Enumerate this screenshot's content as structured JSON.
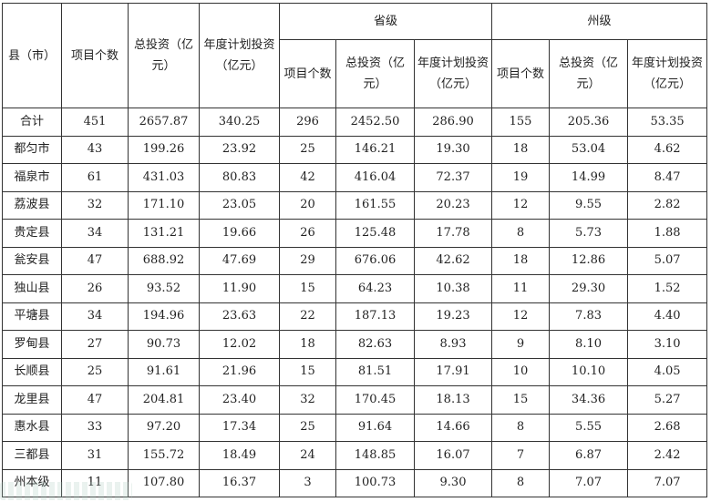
{
  "table": {
    "headers": {
      "county": "县（市）",
      "projects": "项目个数",
      "total": "总投资（亿元）",
      "annual": "年度计划投资（亿元）",
      "provincial_group": "省级",
      "prefecture_group": "州级",
      "sub_projects": "项目个数",
      "sub_total": "总投资（亿元）",
      "sub_annual": "年度计划投资（亿元）"
    },
    "rows": [
      {
        "name": "合计",
        "c1": "451",
        "c2": "2657.87",
        "c3": "340.25",
        "p1": "296",
        "p2": "2452.50",
        "p3": "286.90",
        "z1": "155",
        "z2": "205.36",
        "z3": "53.35"
      },
      {
        "name": "都匀市",
        "c1": "43",
        "c2": "199.26",
        "c3": "23.92",
        "p1": "25",
        "p2": "146.21",
        "p3": "19.30",
        "z1": "18",
        "z2": "53.04",
        "z3": "4.62"
      },
      {
        "name": "福泉市",
        "c1": "61",
        "c2": "431.03",
        "c3": "80.83",
        "p1": "42",
        "p2": "416.04",
        "p3": "72.37",
        "z1": "19",
        "z2": "14.99",
        "z3": "8.47"
      },
      {
        "name": "荔波县",
        "c1": "32",
        "c2": "171.10",
        "c3": "23.05",
        "p1": "20",
        "p2": "161.55",
        "p3": "20.23",
        "z1": "12",
        "z2": "9.55",
        "z3": "2.82"
      },
      {
        "name": "贵定县",
        "c1": "34",
        "c2": "131.21",
        "c3": "19.66",
        "p1": "26",
        "p2": "125.48",
        "p3": "17.78",
        "z1": "8",
        "z2": "5.73",
        "z3": "1.88"
      },
      {
        "name": "瓮安县",
        "c1": "47",
        "c2": "688.92",
        "c3": "47.69",
        "p1": "29",
        "p2": "676.06",
        "p3": "42.62",
        "z1": "18",
        "z2": "12.86",
        "z3": "5.07"
      },
      {
        "name": "独山县",
        "c1": "26",
        "c2": "93.52",
        "c3": "11.90",
        "p1": "15",
        "p2": "64.23",
        "p3": "10.38",
        "z1": "11",
        "z2": "29.30",
        "z3": "1.52"
      },
      {
        "name": "平塘县",
        "c1": "34",
        "c2": "194.96",
        "c3": "23.63",
        "p1": "22",
        "p2": "187.13",
        "p3": "19.23",
        "z1": "12",
        "z2": "7.83",
        "z3": "4.40"
      },
      {
        "name": "罗甸县",
        "c1": "27",
        "c2": "90.73",
        "c3": "12.02",
        "p1": "18",
        "p2": "82.63",
        "p3": "8.93",
        "z1": "9",
        "z2": "8.10",
        "z3": "3.10"
      },
      {
        "name": "长顺县",
        "c1": "25",
        "c2": "91.61",
        "c3": "21.96",
        "p1": "15",
        "p2": "81.51",
        "p3": "17.91",
        "z1": "10",
        "z2": "10.10",
        "z3": "4.05"
      },
      {
        "name": "龙里县",
        "c1": "47",
        "c2": "204.81",
        "c3": "23.40",
        "p1": "32",
        "p2": "170.45",
        "p3": "18.13",
        "z1": "15",
        "z2": "34.36",
        "z3": "5.27"
      },
      {
        "name": "惠水县",
        "c1": "33",
        "c2": "97.20",
        "c3": "17.34",
        "p1": "25",
        "p2": "91.64",
        "p3": "14.66",
        "z1": "8",
        "z2": "5.55",
        "z3": "2.68"
      },
      {
        "name": "三都县",
        "c1": "31",
        "c2": "155.72",
        "c3": "18.49",
        "p1": "24",
        "p2": "148.85",
        "p3": "16.07",
        "z1": "7",
        "z2": "6.87",
        "z3": "2.42"
      },
      {
        "name": "州本级",
        "c1": "11",
        "c2": "107.80",
        "c3": "16.37",
        "p1": "3",
        "p2": "100.73",
        "p3": "9.30",
        "z1": "8",
        "z2": "7.07",
        "z3": "7.07"
      }
    ]
  }
}
